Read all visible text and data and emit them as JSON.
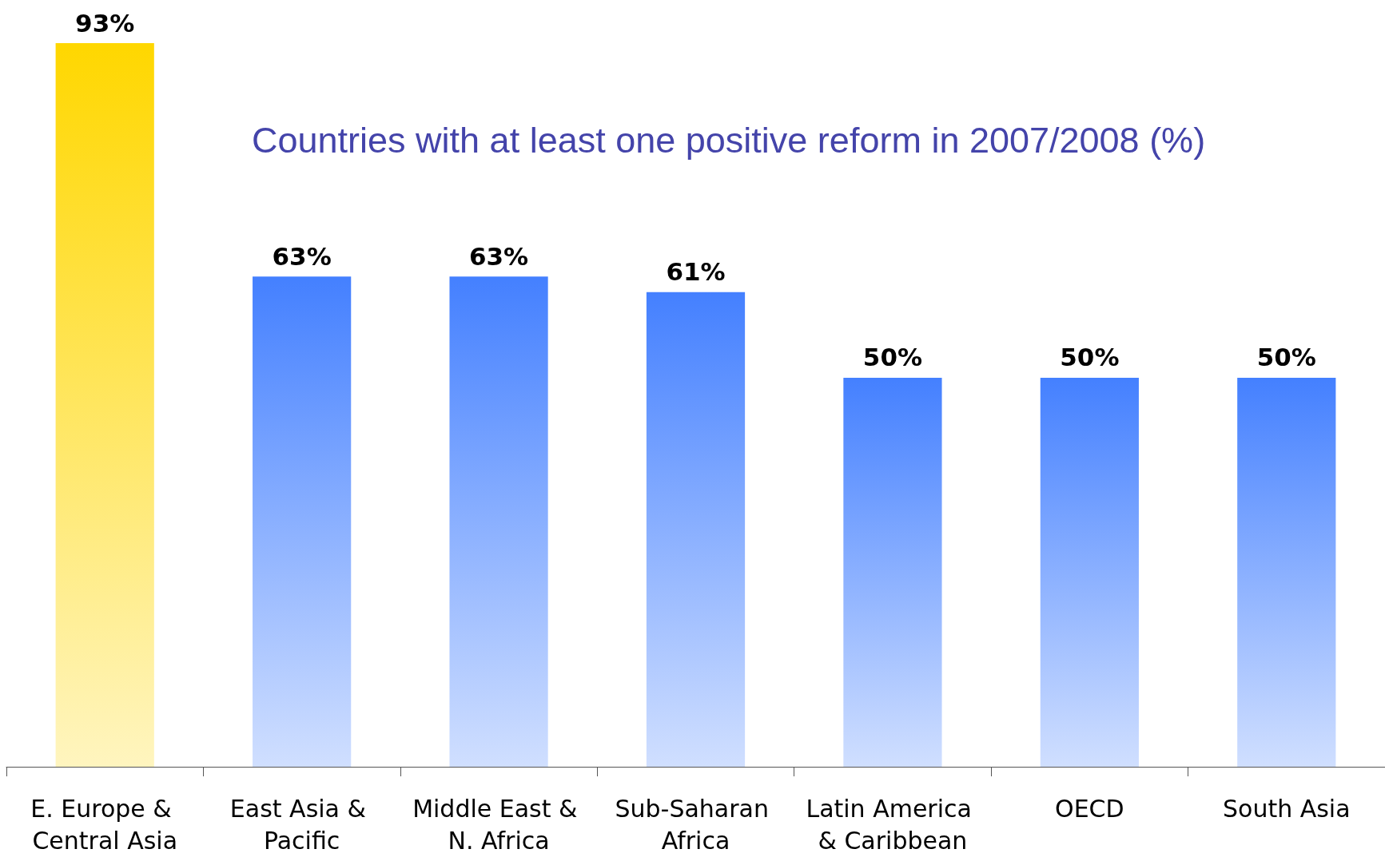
{
  "chart_data": {
    "type": "bar",
    "title": "Countries with at least one positive reform in 2007/2008 (%)",
    "categories": [
      "E. Europe & Central Asia",
      "East Asia & Pacific",
      "Middle East & N. Africa",
      "Sub-Saharan Africa",
      "Latin America & Caribbean",
      "OECD",
      "South Asia"
    ],
    "values": [
      93,
      63,
      63,
      61,
      50,
      50,
      50
    ],
    "value_labels": [
      "93%",
      "63%",
      "63%",
      "61%",
      "50%",
      "50%",
      "50%"
    ],
    "colors": [
      "#ffd700",
      "#4480ff",
      "#4480ff",
      "#4480ff",
      "#4480ff",
      "#4480ff",
      "#4480ff"
    ]
  }
}
